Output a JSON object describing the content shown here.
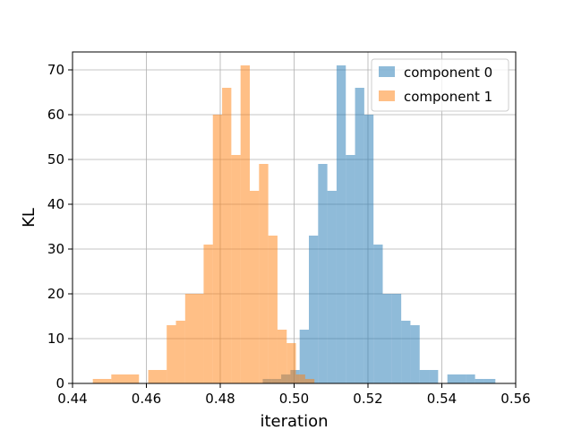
{
  "chart_data": {
    "type": "histogram",
    "title": "",
    "xlabel": "iteration",
    "ylabel": "KL",
    "xlim": [
      0.44,
      0.56
    ],
    "ylim": [
      0,
      74
    ],
    "xticks": [
      "0.44",
      "0.46",
      "0.48",
      "0.50",
      "0.52",
      "0.54",
      "0.56"
    ],
    "yticks": [
      "0",
      "10",
      "20",
      "30",
      "40",
      "50",
      "60",
      "70"
    ],
    "grid": true,
    "legend_position": "top-right",
    "series": [
      {
        "name": "component 0",
        "color": "#1f77b4",
        "opacity": 0.5,
        "bins": [
          {
            "x0": 0.4915,
            "x1": 0.494,
            "count": 1
          },
          {
            "x0": 0.494,
            "x1": 0.4965,
            "count": 1
          },
          {
            "x0": 0.4965,
            "x1": 0.499,
            "count": 2
          },
          {
            "x0": 0.499,
            "x1": 0.5015,
            "count": 3
          },
          {
            "x0": 0.5015,
            "x1": 0.504,
            "count": 12
          },
          {
            "x0": 0.504,
            "x1": 0.5065,
            "count": 33
          },
          {
            "x0": 0.5065,
            "x1": 0.509,
            "count": 49
          },
          {
            "x0": 0.509,
            "x1": 0.5115,
            "count": 43
          },
          {
            "x0": 0.5115,
            "x1": 0.514,
            "count": 71
          },
          {
            "x0": 0.514,
            "x1": 0.5165,
            "count": 51
          },
          {
            "x0": 0.5165,
            "x1": 0.519,
            "count": 66
          },
          {
            "x0": 0.519,
            "x1": 0.5215,
            "count": 60
          },
          {
            "x0": 0.5215,
            "x1": 0.524,
            "count": 31
          },
          {
            "x0": 0.524,
            "x1": 0.5265,
            "count": 20
          },
          {
            "x0": 0.5265,
            "x1": 0.529,
            "count": 20
          },
          {
            "x0": 0.529,
            "x1": 0.5315,
            "count": 14
          },
          {
            "x0": 0.5315,
            "x1": 0.534,
            "count": 13
          },
          {
            "x0": 0.534,
            "x1": 0.5365,
            "count": 3
          },
          {
            "x0": 0.5365,
            "x1": 0.539,
            "count": 3
          },
          {
            "x0": 0.539,
            "x1": 0.5415,
            "count": 0
          },
          {
            "x0": 0.5415,
            "x1": 0.544,
            "count": 2
          },
          {
            "x0": 0.544,
            "x1": 0.5465,
            "count": 2
          },
          {
            "x0": 0.5465,
            "x1": 0.549,
            "count": 2
          },
          {
            "x0": 0.549,
            "x1": 0.5515,
            "count": 1
          },
          {
            "x0": 0.5515,
            "x1": 0.5545,
            "count": 1
          }
        ]
      },
      {
        "name": "component 1",
        "color": "#ff7f0e",
        "opacity": 0.5,
        "bins": [
          {
            "x0": 0.4455,
            "x1": 0.4505,
            "count": 1
          },
          {
            "x0": 0.4505,
            "x1": 0.458,
            "count": 2
          },
          {
            "x0": 0.458,
            "x1": 0.4605,
            "count": 0
          },
          {
            "x0": 0.4605,
            "x1": 0.4655,
            "count": 3
          },
          {
            "x0": 0.4655,
            "x1": 0.468,
            "count": 13
          },
          {
            "x0": 0.468,
            "x1": 0.4705,
            "count": 14
          },
          {
            "x0": 0.4705,
            "x1": 0.4755,
            "count": 20
          },
          {
            "x0": 0.4755,
            "x1": 0.478,
            "count": 31
          },
          {
            "x0": 0.478,
            "x1": 0.4805,
            "count": 60
          },
          {
            "x0": 0.4805,
            "x1": 0.483,
            "count": 66
          },
          {
            "x0": 0.483,
            "x1": 0.4855,
            "count": 51
          },
          {
            "x0": 0.4855,
            "x1": 0.488,
            "count": 71
          },
          {
            "x0": 0.488,
            "x1": 0.4905,
            "count": 43
          },
          {
            "x0": 0.4905,
            "x1": 0.493,
            "count": 49
          },
          {
            "x0": 0.493,
            "x1": 0.4955,
            "count": 33
          },
          {
            "x0": 0.4955,
            "x1": 0.498,
            "count": 12
          },
          {
            "x0": 0.498,
            "x1": 0.5005,
            "count": 9
          },
          {
            "x0": 0.5005,
            "x1": 0.503,
            "count": 2
          },
          {
            "x0": 0.503,
            "x1": 0.5055,
            "count": 1
          }
        ]
      }
    ]
  }
}
